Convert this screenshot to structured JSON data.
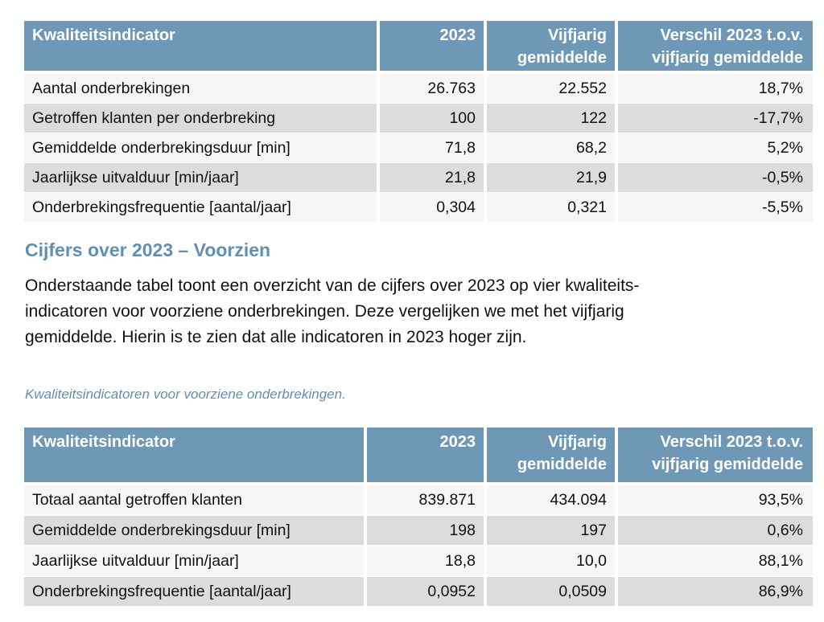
{
  "table1": {
    "headers": [
      "Kwaliteitsindicator",
      "2023",
      "Vijfjarig gemiddelde",
      "Verschil 2023 t.o.v. vijfjarig gemiddelde"
    ],
    "headers_lines": [
      [
        "Kwaliteitsindicator"
      ],
      [
        "2023"
      ],
      [
        "Vijfjarig",
        "gemiddelde"
      ],
      [
        "Verschil 2023 t.o.v.",
        "vijfjarig gemiddelde"
      ]
    ],
    "rows": [
      [
        "Aantal onderbrekingen",
        "26.763",
        "22.552",
        "18,7%"
      ],
      [
        "Getroffen klanten per onderbreking",
        "100",
        "122",
        "-17,7%"
      ],
      [
        "Gemiddelde onderbrekingsduur [min]",
        "71,8",
        "68,2",
        "5,2%"
      ],
      [
        "Jaarlijkse uitvalduur [min/jaar]",
        "21,8",
        "21,9",
        "-0,5%"
      ],
      [
        "Onderbrekingsfrequentie [aantal/jaar]",
        "0,304",
        "0,321",
        "-5,5%"
      ]
    ]
  },
  "section": {
    "title": "Cijfers over 2023 – Voorzien",
    "paragraph_lines": [
      "Onderstaande tabel toont een overzicht van de cijfers over 2023 op vier kwaliteits-",
      "indicatoren voor voorziene onderbrekingen. Deze vergelijken we met het vijfjarig",
      "gemiddelde. Hierin is te zien dat alle indicatoren in 2023 hoger zijn."
    ],
    "caption": "Kwaliteitsindicatoren voor voorziene onderbrekingen."
  },
  "table2": {
    "headers_lines": [
      [
        "Kwaliteitsindicator"
      ],
      [
        "2023"
      ],
      [
        "Vijfjarig",
        "gemiddelde"
      ],
      [
        "Verschil 2023 t.o.v.",
        "vijfjarig gemiddelde"
      ]
    ],
    "rows": [
      [
        "Totaal aantal getroffen klanten",
        "839.871",
        "434.094",
        "93,5%"
      ],
      [
        "Gemiddelde onderbrekingsduur [min]",
        "198",
        "197",
        "0,6%"
      ],
      [
        "Jaarlijkse uitvalduur [min/jaar]",
        "18,8",
        "10,0",
        "88,1%"
      ],
      [
        "Onderbrekingsfrequentie [aantal/jaar]",
        "0,0952",
        "0,0509",
        "86,9%"
      ]
    ]
  },
  "colors": {
    "header_bg": "#6f98b6",
    "heading_text": "#5f8fb4",
    "row_gray": "#dcdcdc",
    "row_white": "#f6f6f6"
  }
}
